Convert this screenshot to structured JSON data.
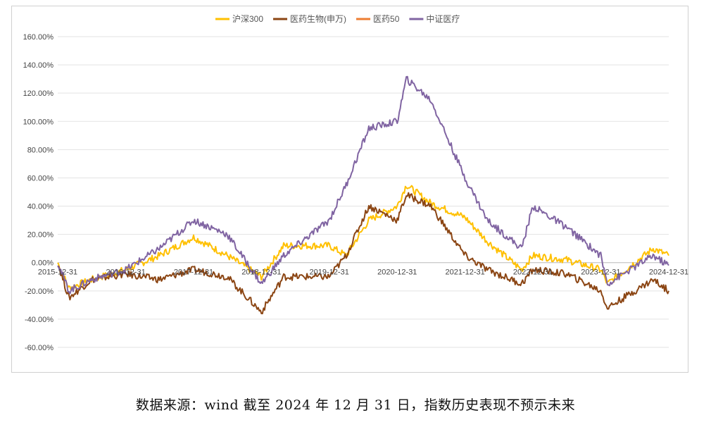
{
  "chart_data": {
    "type": "line",
    "title": "",
    "xlabel": "",
    "ylabel": "",
    "ylim": [
      -0.6,
      1.6
    ],
    "y_ticks": [
      "160.00%",
      "140.00%",
      "120.00%",
      "100.00%",
      "80.00%",
      "60.00%",
      "40.00%",
      "20.00%",
      "0.00%",
      "-20.00%",
      "-40.00%",
      "-60.00%"
    ],
    "x_ticks": [
      "2015-12-31",
      "2016-12-31",
      "2017-12-31",
      "2018-12-31",
      "2019-12-31",
      "2020-12-31",
      "2021-12-31",
      "2022-12-31",
      "2023-12-31",
      "2024-12-31"
    ],
    "grid": "horizontal",
    "legend_position": "top-center",
    "series": [
      {
        "name": "沪深300",
        "color": "#FFC000",
        "x": [
          "2015-12-31",
          "2016-02-29",
          "2016-06-30",
          "2016-12-31",
          "2017-06-30",
          "2017-12-31",
          "2018-06-30",
          "2018-12-31",
          "2019-04-30",
          "2019-12-31",
          "2020-03-31",
          "2020-07-31",
          "2020-12-31",
          "2021-02-18",
          "2021-06-30",
          "2021-12-31",
          "2022-04-30",
          "2022-10-31",
          "2022-12-31",
          "2023-06-30",
          "2023-12-31",
          "2024-02-05",
          "2024-10-08",
          "2024-12-31"
        ],
        "values": [
          0.0,
          -0.18,
          -0.12,
          -0.05,
          0.05,
          0.18,
          0.05,
          -0.1,
          0.12,
          0.12,
          0.05,
          0.3,
          0.4,
          0.55,
          0.42,
          0.32,
          0.15,
          -0.05,
          0.05,
          0.02,
          -0.05,
          -0.15,
          0.1,
          0.05
        ]
      },
      {
        "name": "医药生物(申万)",
        "color": "#8B4513",
        "x": [
          "2015-12-31",
          "2016-02-29",
          "2016-06-30",
          "2016-12-31",
          "2017-06-30",
          "2017-12-31",
          "2018-06-30",
          "2018-12-31",
          "2019-04-30",
          "2019-12-31",
          "2020-03-31",
          "2020-07-31",
          "2020-12-31",
          "2021-02-18",
          "2021-06-30",
          "2021-12-31",
          "2022-04-30",
          "2022-10-31",
          "2022-12-31",
          "2023-06-30",
          "2023-12-31",
          "2024-02-05",
          "2024-10-08",
          "2024-12-31"
        ],
        "values": [
          0.0,
          -0.25,
          -0.12,
          -0.08,
          -0.12,
          -0.05,
          -0.1,
          -0.35,
          -0.1,
          -0.1,
          0.05,
          0.4,
          0.3,
          0.48,
          0.4,
          0.05,
          -0.05,
          -0.15,
          -0.05,
          -0.08,
          -0.2,
          -0.32,
          -0.12,
          -0.2
        ]
      },
      {
        "name": "医药50",
        "color": "#ED7D31",
        "x": [],
        "values": []
      },
      {
        "name": "中证医疗",
        "color": "#8064A2",
        "x": [
          "2015-12-31",
          "2016-02-29",
          "2016-06-30",
          "2016-12-31",
          "2017-06-30",
          "2017-12-31",
          "2018-06-30",
          "2018-12-31",
          "2019-04-30",
          "2019-12-31",
          "2020-03-31",
          "2020-07-31",
          "2020-12-31",
          "2021-02-18",
          "2021-06-30",
          "2021-12-31",
          "2022-04-30",
          "2022-10-31",
          "2022-12-31",
          "2023-06-30",
          "2023-12-31",
          "2024-02-05",
          "2024-10-08",
          "2024-12-31"
        ],
        "values": [
          0.0,
          -0.2,
          -0.12,
          -0.05,
          0.1,
          0.3,
          0.2,
          -0.15,
          0.05,
          0.3,
          0.55,
          0.95,
          1.0,
          1.3,
          1.15,
          0.6,
          0.3,
          0.1,
          0.4,
          0.25,
          0.05,
          -0.15,
          0.05,
          -0.02
        ]
      }
    ]
  },
  "caption": "数据来源：wind   截至 2024 年 12 月 31 日，指数历史表现不预示未来"
}
